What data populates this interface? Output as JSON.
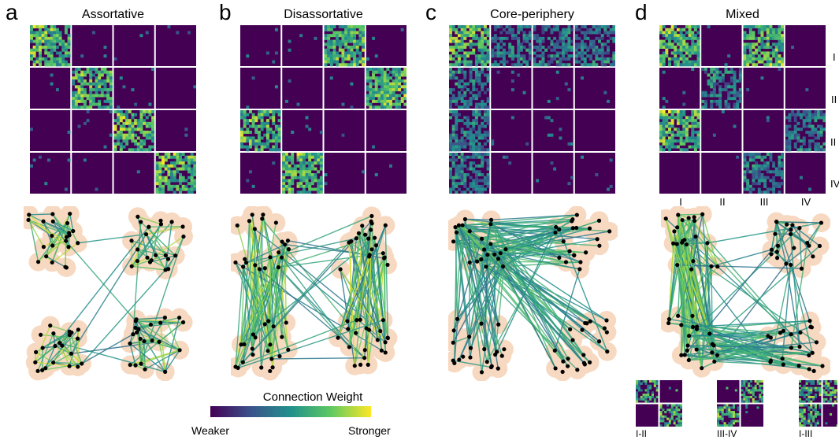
{
  "panels": [
    {
      "letter": "a",
      "title": "Assortative",
      "pattern": "assortative"
    },
    {
      "letter": "b",
      "title": "Disassortative",
      "pattern": "disassortative"
    },
    {
      "letter": "c",
      "title": "Core-periphery",
      "pattern": "core"
    },
    {
      "letter": "d",
      "title": "Mixed",
      "pattern": "mixed"
    }
  ],
  "mixed_labels": {
    "rows": [
      "I",
      "II",
      "III",
      "IV"
    ],
    "cols": [
      "I",
      "II",
      "III",
      "IV"
    ]
  },
  "mini_matrices": [
    {
      "label": "I-II",
      "pattern": [
        [
          1,
          0
        ],
        [
          0,
          1
        ]
      ]
    },
    {
      "label": "III-IV",
      "pattern": [
        [
          0,
          1
        ],
        [
          1,
          0
        ]
      ]
    },
    {
      "label": "I-III",
      "pattern": [
        [
          1,
          1
        ],
        [
          1,
          0
        ]
      ]
    }
  ],
  "colorbar": {
    "title": "Connection Weight",
    "low_label": "Weaker",
    "high_label": "Stronger",
    "colors": [
      "#440154",
      "#3b528b",
      "#21918c",
      "#5ec962",
      "#fde725"
    ]
  },
  "node_color": "#000000",
  "halo_color": "#f6d2b6"
}
